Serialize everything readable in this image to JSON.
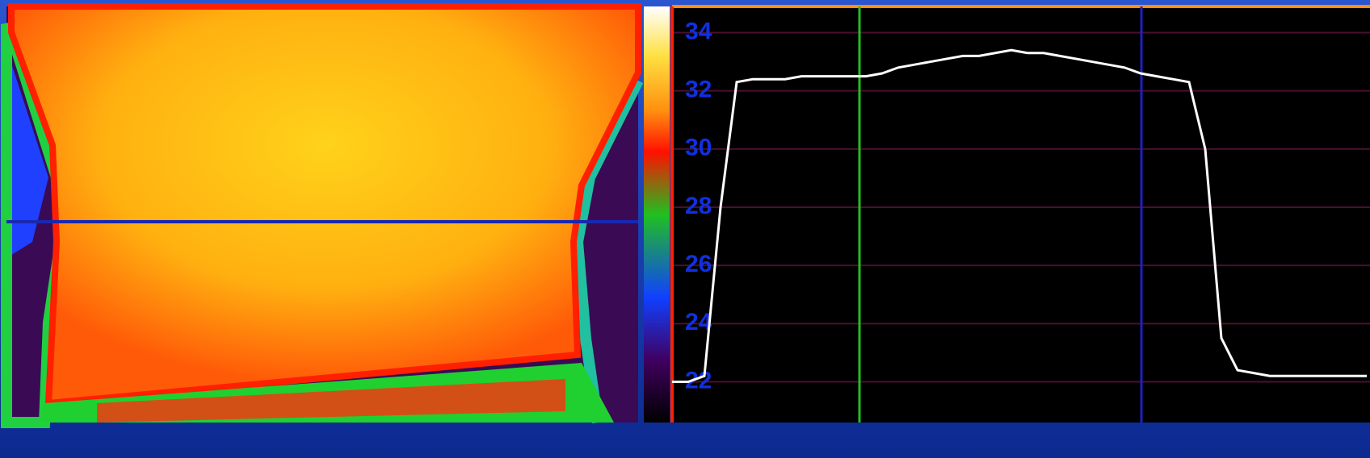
{
  "chart_data": {
    "type": "line",
    "values": [
      22.0,
      22.0,
      22.2,
      28.0,
      32.3,
      32.4,
      32.4,
      32.4,
      32.5,
      32.5,
      32.5,
      32.5,
      32.5,
      32.6,
      32.8,
      32.9,
      33.0,
      33.1,
      33.2,
      33.2,
      33.3,
      33.4,
      33.3,
      33.3,
      33.2,
      33.1,
      33.0,
      32.9,
      32.8,
      32.6,
      32.5,
      32.4,
      32.3,
      30.0,
      23.5,
      22.4,
      22.3,
      22.2,
      22.2,
      22.2,
      22.2,
      22.2,
      22.2,
      22.2
    ],
    "color": "#ffffff",
    "ylim": [
      20.6,
      34.9
    ],
    "yticks": [
      22,
      24,
      26,
      28,
      30,
      32,
      34
    ],
    "grid": true
  }
}
